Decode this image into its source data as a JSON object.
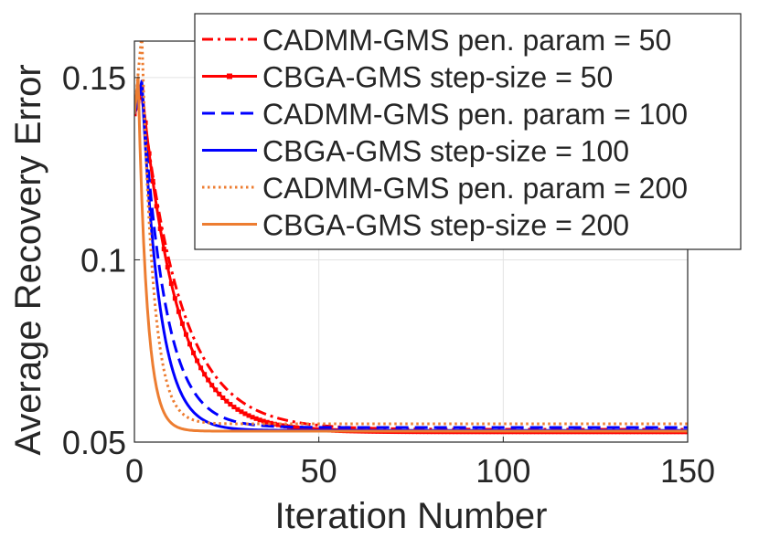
{
  "chart_data": {
    "type": "line",
    "title": "",
    "xlabel": "Iteration Number",
    "ylabel": "Average Recovery Error",
    "xlim": [
      0,
      150
    ],
    "ylim": [
      0.05,
      0.16
    ],
    "xticks": [
      0,
      50,
      100,
      150
    ],
    "xtick_labels": [
      "0",
      "50",
      "100",
      "150"
    ],
    "yticks": [
      0.05,
      0.1,
      0.15
    ],
    "ytick_labels": [
      "0.05",
      "0.1",
      "0.15"
    ],
    "grid": true,
    "legend_position": "top-right",
    "series": [
      {
        "name": "CADMM-GMS pen. param = 50",
        "color": "#ff0000",
        "line_style": "dashdot",
        "marker": "none",
        "start": 0.14,
        "peak": 0.145,
        "peak_at": 2,
        "final": 0.0535,
        "decay_rate": 0.092
      },
      {
        "name": "CBGA-GMS step-size = 50",
        "color": "#ff0000",
        "line_style": "solid",
        "marker": "square",
        "start": 0.14,
        "peak": 0.147,
        "peak_at": 2,
        "final": 0.0528,
        "decay_rate": 0.105
      },
      {
        "name": "CADMM-GMS pen. param = 100",
        "color": "#0000ff",
        "line_style": "dashed",
        "marker": "none",
        "start": 0.14,
        "peak": 0.148,
        "peak_at": 2,
        "final": 0.054,
        "decay_rate": 0.16
      },
      {
        "name": "CBGA-GMS step-size = 100",
        "color": "#0000ff",
        "line_style": "solid",
        "marker": "none",
        "start": 0.14,
        "peak": 0.149,
        "peak_at": 2,
        "final": 0.0532,
        "decay_rate": 0.21
      },
      {
        "name": "CADMM-GMS pen. param = 200",
        "color": "#ed7d31",
        "line_style": "dotted",
        "marker": "none",
        "start": 0.14,
        "peak": 0.162,
        "peak_at": 2,
        "final": 0.055,
        "decay_rate": 0.33
      },
      {
        "name": "CBGA-GMS step-size = 200",
        "color": "#ed7d31",
        "line_style": "solid",
        "marker": "none",
        "start": 0.14,
        "peak": 0.15,
        "peak_at": 1,
        "final": 0.053,
        "decay_rate": 0.42
      }
    ]
  }
}
